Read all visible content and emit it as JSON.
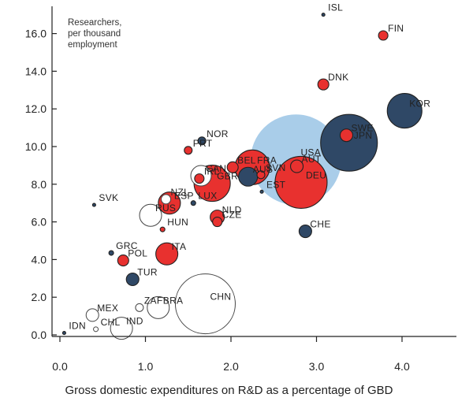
{
  "chart_data": {
    "type": "scatter",
    "variant": "bubble",
    "annotation": [
      "Researchers,",
      "per thousand",
      "employment"
    ],
    "xlabel": "Gross domestic expenditures on R&D as a percentage of GBD",
    "ylabel": "",
    "xlim": [
      -0.05,
      4.65
    ],
    "ylim": [
      0,
      17.5
    ],
    "xticks": [
      "0.0",
      "1.0",
      "2.0",
      "3.0",
      "4.0"
    ],
    "yticks": [
      "0.0",
      "2.0",
      "4.0",
      "6.0",
      "8.0",
      "10.0",
      "12.0",
      "14.0",
      "16.0"
    ],
    "grid": false,
    "colors": {
      "red": "#e8312f",
      "navy": "#2f4866",
      "light": "#a9cde9",
      "white": "#ffffff",
      "outline": "#333333"
    },
    "points": [
      {
        "label": "ISL",
        "x": 3.08,
        "y": 17.0,
        "size": 2,
        "color": "navy"
      },
      {
        "label": "FIN",
        "x": 3.78,
        "y": 15.9,
        "size": 6,
        "color": "red"
      },
      {
        "label": "DNK",
        "x": 3.08,
        "y": 13.3,
        "size": 7,
        "color": "red"
      },
      {
        "label": "KOR",
        "x": 4.03,
        "y": 11.9,
        "size": 22,
        "color": "navy"
      },
      {
        "label": "USA",
        "x": 2.76,
        "y": 9.3,
        "size": 58,
        "color": "light"
      },
      {
        "label": "SWE",
        "x": 3.35,
        "y": 10.6,
        "size": 8,
        "color": "red"
      },
      {
        "label": "JPN",
        "x": 3.38,
        "y": 10.2,
        "size": 36,
        "color": "navy"
      },
      {
        "label": "NOR",
        "x": 1.66,
        "y": 10.3,
        "size": 5,
        "color": "navy"
      },
      {
        "label": "PRT",
        "x": 1.5,
        "y": 9.8,
        "size": 5,
        "color": "red"
      },
      {
        "label": "BEL",
        "x": 2.02,
        "y": 8.9,
        "size": 7,
        "color": "red"
      },
      {
        "label": "FRA",
        "x": 2.25,
        "y": 8.9,
        "size": 22,
        "color": "red"
      },
      {
        "label": "SVN",
        "x": 2.35,
        "y": 8.5,
        "size": 5,
        "color": "red"
      },
      {
        "label": "AUT",
        "x": 2.77,
        "y": 8.95,
        "size": 8,
        "color": "red"
      },
      {
        "label": "CAN",
        "x": 1.65,
        "y": 8.45,
        "size": 13,
        "color": "white"
      },
      {
        "label": "AUS",
        "x": 2.2,
        "y": 8.4,
        "size": 12,
        "color": "navy"
      },
      {
        "label": "IRL",
        "x": 1.63,
        "y": 8.3,
        "size": 6,
        "color": "red"
      },
      {
        "label": "DEU",
        "x": 2.82,
        "y": 8.1,
        "size": 33,
        "color": "red"
      },
      {
        "label": "GBR",
        "x": 1.78,
        "y": 8.05,
        "size": 23,
        "color": "red"
      },
      {
        "label": "EST",
        "x": 2.36,
        "y": 7.6,
        "size": 2,
        "color": "navy"
      },
      {
        "label": "SVK",
        "x": 0.4,
        "y": 6.9,
        "size": 2,
        "color": "navy"
      },
      {
        "label": "NZL",
        "x": 1.24,
        "y": 7.2,
        "size": 6,
        "color": "white"
      },
      {
        "label": "ESP",
        "x": 1.28,
        "y": 7.0,
        "size": 14,
        "color": "red"
      },
      {
        "label": "LUX",
        "x": 1.56,
        "y": 7.0,
        "size": 3,
        "color": "navy"
      },
      {
        "label": "RUS",
        "x": 1.06,
        "y": 6.35,
        "size": 14,
        "color": "white"
      },
      {
        "label": "NLD",
        "x": 1.84,
        "y": 6.25,
        "size": 9,
        "color": "red"
      },
      {
        "label": "CZE",
        "x": 1.84,
        "y": 6.0,
        "size": 6,
        "color": "red"
      },
      {
        "label": "CHE",
        "x": 2.87,
        "y": 5.5,
        "size": 8,
        "color": "navy"
      },
      {
        "label": "HUN",
        "x": 1.2,
        "y": 5.6,
        "size": 3,
        "color": "red"
      },
      {
        "label": "GRC",
        "x": 0.6,
        "y": 4.35,
        "size": 3,
        "color": "navy"
      },
      {
        "label": "POL",
        "x": 0.74,
        "y": 3.95,
        "size": 7,
        "color": "red"
      },
      {
        "label": "ITA",
        "x": 1.25,
        "y": 4.3,
        "size": 14,
        "color": "red"
      },
      {
        "label": "TUR",
        "x": 0.85,
        "y": 2.95,
        "size": 8,
        "color": "navy"
      },
      {
        "label": "MEX",
        "x": 0.38,
        "y": 1.05,
        "size": 8,
        "color": "white"
      },
      {
        "label": "ZAF",
        "x": 0.93,
        "y": 1.45,
        "size": 5,
        "color": "white"
      },
      {
        "label": "BRA",
        "x": 1.15,
        "y": 1.45,
        "size": 14,
        "color": "white"
      },
      {
        "label": "CHN",
        "x": 1.7,
        "y": 1.65,
        "size": 38,
        "color": "white"
      },
      {
        "label": "IDN",
        "x": 0.05,
        "y": 0.1,
        "size": 2,
        "color": "navy"
      },
      {
        "label": "CHL",
        "x": 0.42,
        "y": 0.3,
        "size": 3,
        "color": "white"
      },
      {
        "label": "IND",
        "x": 0.72,
        "y": 0.35,
        "size": 14,
        "color": "white"
      }
    ]
  }
}
